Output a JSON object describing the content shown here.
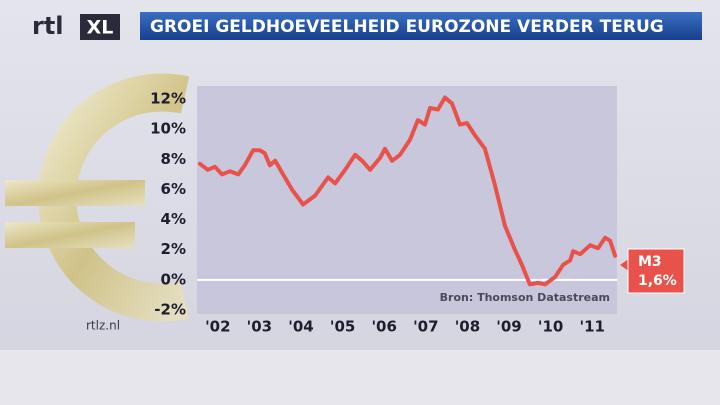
{
  "chart_data": {
    "type": "line",
    "title": "GROEI GELDHOEVEELHEID EUROZONE VERDER TERUG",
    "logo": "rtl",
    "logo_badge": "XL",
    "footer": "rtlz.nl",
    "source": "Bron: Thomson Datastream",
    "end_label": "1,6%",
    "x": [
      2002.07,
      2002.26,
      2002.43,
      2002.6,
      2002.79,
      2002.99,
      2003.15,
      2003.35,
      2003.51,
      2003.63,
      2003.75,
      2003.88,
      2004.07,
      2004.28,
      2004.55,
      2004.84,
      2005.15,
      2005.32,
      2005.56,
      2005.8,
      2005.97,
      2006.16,
      2006.4,
      2006.52,
      2006.69,
      2006.88,
      2007.12,
      2007.31,
      2007.48,
      2007.6,
      2007.79,
      2007.96,
      2008.13,
      2008.32,
      2008.49,
      2008.68,
      2008.92,
      2009.16,
      2009.4,
      2009.64,
      2009.81,
      2010.0,
      2010.2,
      2010.37,
      2010.61,
      2010.8,
      2010.97,
      2011.04,
      2011.21,
      2011.45,
      2011.64,
      2011.81,
      2011.93,
      2012.05
    ],
    "series": [
      {
        "name": "M3",
        "color": "#e8524a",
        "values": [
          7.7,
          7.3,
          7.5,
          7.0,
          7.2,
          7.0,
          7.6,
          8.6,
          8.6,
          8.4,
          7.6,
          7.9,
          7.0,
          6.0,
          5.0,
          5.6,
          6.8,
          6.4,
          7.3,
          8.3,
          7.9,
          7.3,
          8.1,
          8.7,
          7.9,
          8.3,
          9.3,
          10.6,
          10.3,
          11.4,
          11.3,
          12.1,
          11.7,
          10.3,
          10.4,
          9.6,
          8.7,
          6.3,
          3.6,
          2.0,
          1.0,
          -0.3,
          -0.2,
          -0.3,
          0.2,
          1.0,
          1.3,
          1.9,
          1.7,
          2.3,
          2.1,
          2.8,
          2.6,
          1.6
        ]
      }
    ],
    "xlim": [
      2002,
      2012.1
    ],
    "xticks": [
      {
        "value": 2002.5,
        "label": "'02"
      },
      {
        "value": 2003.5,
        "label": "'03"
      },
      {
        "value": 2004.5,
        "label": "'04"
      },
      {
        "value": 2005.5,
        "label": "'05"
      },
      {
        "value": 2006.5,
        "label": "'06"
      },
      {
        "value": 2007.5,
        "label": "'07"
      },
      {
        "value": 2008.5,
        "label": "'08"
      },
      {
        "value": 2009.5,
        "label": "'09"
      },
      {
        "value": 2010.5,
        "label": "'10"
      },
      {
        "value": 2011.5,
        "label": "'11"
      }
    ],
    "ylim": [
      -2,
      12
    ],
    "yticks": [
      {
        "value": -2,
        "label": "-2%"
      },
      {
        "value": 0,
        "label": "0%"
      },
      {
        "value": 2,
        "label": "2%"
      },
      {
        "value": 4,
        "label": "4%"
      },
      {
        "value": 6,
        "label": "6%"
      },
      {
        "value": 8,
        "label": "8%"
      },
      {
        "value": 10,
        "label": "10%"
      },
      {
        "value": 12,
        "label": "12%"
      }
    ],
    "zero_line": true
  }
}
